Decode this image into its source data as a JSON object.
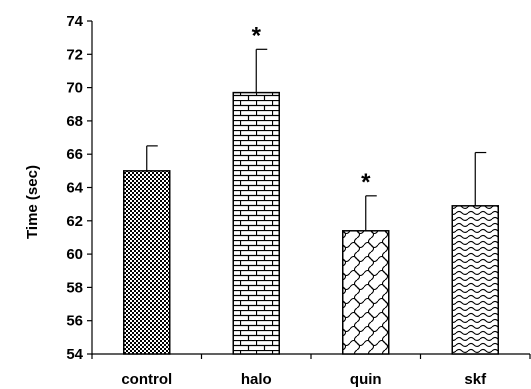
{
  "chart_data": {
    "type": "bar",
    "title": "",
    "xlabel": "",
    "ylabel": "Time (sec)",
    "ylim": [
      54,
      74
    ],
    "yticks": [
      54,
      56,
      58,
      60,
      62,
      64,
      66,
      68,
      70,
      72,
      74
    ],
    "grid": false,
    "legend": "none",
    "categories": [
      "control",
      "halo",
      "quin",
      "skf"
    ],
    "values": [
      65.0,
      69.7,
      61.4,
      62.9
    ],
    "errors": [
      1.5,
      2.6,
      2.1,
      3.2
    ],
    "patterns": [
      "dots-dense",
      "brick",
      "diamond-lattice",
      "wave"
    ],
    "significance": [
      "",
      "*",
      "*",
      ""
    ]
  }
}
